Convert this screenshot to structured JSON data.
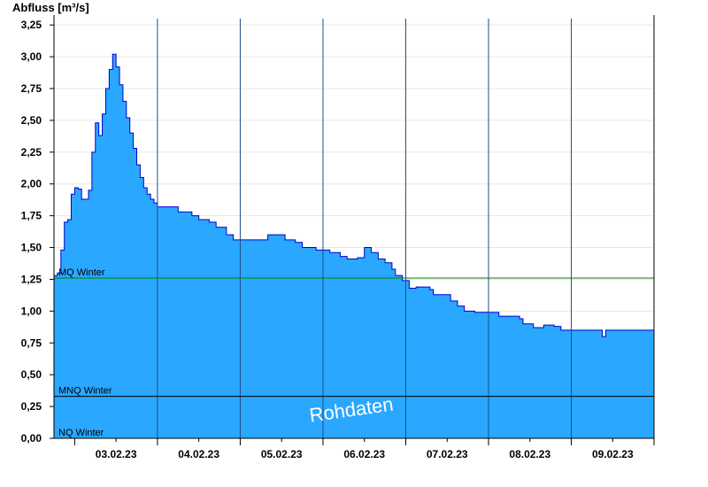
{
  "chart_data": {
    "type": "area",
    "title": "",
    "ylabel": "Abfluss [m³/s]",
    "xlabel": "",
    "ylim": [
      0,
      3.3
    ],
    "x_start": "02.02.23 18:00",
    "x_end": "09.02.23 23:59",
    "yticks": [
      "0,00",
      "0,25",
      "0,50",
      "0,75",
      "1,00",
      "1,25",
      "1,50",
      "1,75",
      "2,00",
      "2,25",
      "2,50",
      "2,75",
      "3,00",
      "3,25"
    ],
    "xticks": [
      "03.02.23",
      "04.02.23",
      "05.02.23",
      "06.02.23",
      "07.02.23",
      "08.02.23",
      "09.02.23"
    ],
    "grid": true,
    "series": [
      {
        "name": "",
        "color": "#2aa7ff",
        "line_color": "#0000cc",
        "points": [
          [
            "02.02.23 18:00",
            1.28
          ],
          [
            "02.02.23 19:00",
            1.3
          ],
          [
            "02.02.23 20:00",
            1.48
          ],
          [
            "02.02.23 21:00",
            1.7
          ],
          [
            "02.02.23 22:00",
            1.72
          ],
          [
            "02.02.23 23:00",
            1.92
          ],
          [
            "03.02.23 00:00",
            1.97
          ],
          [
            "03.02.23 01:00",
            1.96
          ],
          [
            "03.02.23 02:00",
            1.88
          ],
          [
            "03.02.23 03:00",
            1.88
          ],
          [
            "03.02.23 04:00",
            1.95
          ],
          [
            "03.02.23 05:00",
            2.25
          ],
          [
            "03.02.23 06:00",
            2.48
          ],
          [
            "03.02.23 07:00",
            2.38
          ],
          [
            "03.02.23 08:00",
            2.55
          ],
          [
            "03.02.23 09:00",
            2.75
          ],
          [
            "03.02.23 10:00",
            2.9
          ],
          [
            "03.02.23 11:00",
            3.02
          ],
          [
            "03.02.23 12:00",
            2.92
          ],
          [
            "03.02.23 13:00",
            2.78
          ],
          [
            "03.02.23 14:00",
            2.65
          ],
          [
            "03.02.23 15:00",
            2.52
          ],
          [
            "03.02.23 16:00",
            2.4
          ],
          [
            "03.02.23 17:00",
            2.28
          ],
          [
            "03.02.23 18:00",
            2.15
          ],
          [
            "03.02.23 19:00",
            2.05
          ],
          [
            "03.02.23 20:00",
            1.97
          ],
          [
            "03.02.23 21:00",
            1.92
          ],
          [
            "03.02.23 22:00",
            1.88
          ],
          [
            "03.02.23 23:00",
            1.85
          ],
          [
            "04.02.23 00:00",
            1.82
          ],
          [
            "04.02.23 04:00",
            1.82
          ],
          [
            "04.02.23 06:00",
            1.78
          ],
          [
            "04.02.23 10:00",
            1.75
          ],
          [
            "04.02.23 12:00",
            1.72
          ],
          [
            "04.02.23 15:00",
            1.7
          ],
          [
            "04.02.23 17:00",
            1.66
          ],
          [
            "04.02.23 20:00",
            1.6
          ],
          [
            "04.02.23 22:00",
            1.56
          ],
          [
            "05.02.23 06:00",
            1.56
          ],
          [
            "05.02.23 08:00",
            1.6
          ],
          [
            "05.02.23 12:00",
            1.6
          ],
          [
            "05.02.23 13:00",
            1.56
          ],
          [
            "05.02.23 16:00",
            1.54
          ],
          [
            "05.02.23 18:00",
            1.5
          ],
          [
            "05.02.23 22:00",
            1.48
          ],
          [
            "06.02.23 02:00",
            1.46
          ],
          [
            "06.02.23 05:00",
            1.43
          ],
          [
            "06.02.23 07:00",
            1.41
          ],
          [
            "06.02.23 10:00",
            1.42
          ],
          [
            "06.02.23 12:00",
            1.5
          ],
          [
            "06.02.23 14:00",
            1.46
          ],
          [
            "06.02.23 16:00",
            1.41
          ],
          [
            "06.02.23 18:00",
            1.38
          ],
          [
            "06.02.23 20:00",
            1.33
          ],
          [
            "06.02.23 21:00",
            1.28
          ],
          [
            "06.02.23 23:00",
            1.24
          ],
          [
            "07.02.23 01:00",
            1.18
          ],
          [
            "07.02.23 03:00",
            1.19
          ],
          [
            "07.02.23 07:00",
            1.17
          ],
          [
            "07.02.23 08:00",
            1.13
          ],
          [
            "07.02.23 12:00",
            1.13
          ],
          [
            "07.02.23 13:00",
            1.08
          ],
          [
            "07.02.23 15:00",
            1.04
          ],
          [
            "07.02.23 17:00",
            1.0
          ],
          [
            "07.02.23 20:00",
            0.99
          ],
          [
            "08.02.23 01:00",
            0.99
          ],
          [
            "08.02.23 03:00",
            0.96
          ],
          [
            "08.02.23 09:00",
            0.94
          ],
          [
            "08.02.23 10:00",
            0.9
          ],
          [
            "08.02.23 13:00",
            0.87
          ],
          [
            "08.02.23 16:00",
            0.89
          ],
          [
            "08.02.23 19:00",
            0.88
          ],
          [
            "08.02.23 21:00",
            0.85
          ],
          [
            "09.02.23 08:00",
            0.85
          ],
          [
            "09.02.23 09:00",
            0.8
          ],
          [
            "09.02.23 10:00",
            0.85
          ],
          [
            "09.02.23 11:00",
            0.85
          ]
        ]
      }
    ],
    "reference_lines": [
      {
        "label": "MQ Winter",
        "value": 1.26,
        "color": "#008000"
      },
      {
        "label": "MNQ Winter",
        "value": 0.33,
        "color": "#000000"
      },
      {
        "label": "NQ Winter",
        "value": 0.0,
        "color": "#000000"
      }
    ],
    "watermark": "Rohdaten"
  }
}
